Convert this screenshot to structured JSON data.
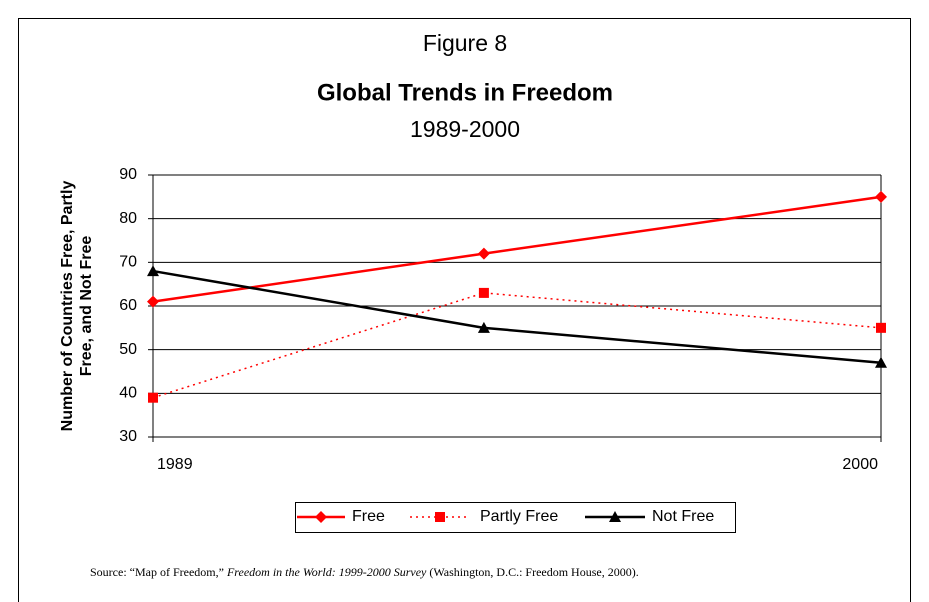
{
  "chart_data": {
    "type": "line",
    "figure_label": "Figure 8",
    "title": "Global Trends in Freedom",
    "subtitle": "1989-2000",
    "ylabel_lines": [
      "Number of Countries Free, Partly",
      "Free, and Not Free"
    ],
    "x": [
      1989,
      1994,
      2000
    ],
    "xlim": [
      1989,
      2000
    ],
    "xticks": [
      1989,
      2000
    ],
    "ylim": [
      30,
      90
    ],
    "yticks": [
      30,
      40,
      50,
      60,
      70,
      80,
      90
    ],
    "grid": true,
    "legend": "bottom",
    "series": [
      {
        "name": "Free",
        "color": "#ff0000",
        "marker": "diamond",
        "dash": "solid",
        "values": [
          61,
          72,
          85
        ]
      },
      {
        "name": "Partly Free",
        "color": "#ff0000",
        "marker": "square",
        "dash": "dotted",
        "values": [
          39,
          63,
          55
        ]
      },
      {
        "name": "Not Free",
        "color": "#000000",
        "marker": "triangle",
        "dash": "solid",
        "values": [
          68,
          55,
          47
        ]
      }
    ],
    "source": [
      "Source: “Map of Freedom,” ",
      "Freedom in the World: 1999-2000 Survey",
      " (Washington, D.C.: Freedom House, 2000)."
    ]
  }
}
